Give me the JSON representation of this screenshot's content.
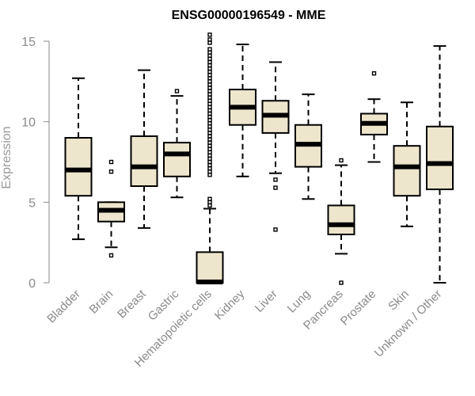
{
  "chart_data": {
    "type": "box",
    "title": "ENSG00000196549 - MME",
    "xlabel": "",
    "ylabel": "Expression",
    "ylim": [
      0,
      15
    ],
    "yticks": [
      0,
      5,
      10,
      15
    ],
    "grid": false,
    "colors": {
      "box_fill": "#ede6cc",
      "stroke": "#000000",
      "axis": "#8a8a8a",
      "label": "#9a9a9a"
    },
    "categories": [
      "Bladder",
      "Brain",
      "Breast",
      "Gastric",
      "Hematopoietic cells",
      "Kidney",
      "Liver",
      "Lung",
      "Pancreas",
      "Prostate",
      "Skin",
      "Unknown / Other"
    ],
    "boxes": [
      {
        "name": "Bladder",
        "whisker_low": 2.7,
        "q1": 5.4,
        "median": 7.0,
        "q3": 9.0,
        "whisker_high": 12.7,
        "outliers": []
      },
      {
        "name": "Brain",
        "whisker_low": 2.2,
        "q1": 3.8,
        "median": 4.5,
        "q3": 5.0,
        "whisker_high": 5.0,
        "outliers": [
          1.7,
          6.9,
          7.5
        ]
      },
      {
        "name": "Breast",
        "whisker_low": 3.4,
        "q1": 6.0,
        "median": 7.2,
        "q3": 9.1,
        "whisker_high": 13.2,
        "outliers": []
      },
      {
        "name": "Gastric",
        "whisker_low": 5.3,
        "q1": 6.6,
        "median": 8.0,
        "q3": 8.7,
        "whisker_high": 11.6,
        "outliers": [
          11.9
        ]
      },
      {
        "name": "Hematopoietic cells",
        "whisker_low": 0.0,
        "q1": 0.0,
        "median": 0.05,
        "q3": 1.9,
        "whisker_high": 4.6,
        "outliers": [
          4.8,
          5.0,
          5.2,
          6.7,
          6.9,
          7.1,
          7.3,
          7.5,
          7.7,
          7.9,
          8.1,
          8.3,
          8.5,
          8.7,
          8.9,
          9.1,
          9.3,
          9.5,
          9.7,
          9.9,
          10.1,
          10.3,
          10.5,
          10.7,
          10.9,
          11.1,
          11.3,
          11.5,
          11.7,
          11.9,
          12.1,
          12.3,
          12.5,
          12.7,
          12.9,
          13.1,
          13.3,
          13.5,
          13.7,
          13.9,
          14.1,
          14.3,
          14.5,
          14.9,
          15.1,
          15.4
        ]
      },
      {
        "name": "Kidney",
        "whisker_low": 6.6,
        "q1": 9.8,
        "median": 10.9,
        "q3": 12.0,
        "whisker_high": 14.8,
        "outliers": []
      },
      {
        "name": "Liver",
        "whisker_low": 6.8,
        "q1": 9.3,
        "median": 10.4,
        "q3": 11.3,
        "whisker_high": 13.7,
        "outliers": [
          3.3,
          5.9,
          6.4
        ]
      },
      {
        "name": "Lung",
        "whisker_low": 5.2,
        "q1": 7.2,
        "median": 8.6,
        "q3": 9.8,
        "whisker_high": 11.7,
        "outliers": []
      },
      {
        "name": "Pancreas",
        "whisker_low": 1.8,
        "q1": 3.0,
        "median": 3.6,
        "q3": 4.8,
        "whisker_high": 7.3,
        "outliers": [
          0.0,
          7.6
        ]
      },
      {
        "name": "Prostate",
        "whisker_low": 7.5,
        "q1": 9.2,
        "median": 9.9,
        "q3": 10.5,
        "whisker_high": 11.4,
        "outliers": [
          13.0
        ]
      },
      {
        "name": "Skin",
        "whisker_low": 3.5,
        "q1": 5.4,
        "median": 7.2,
        "q3": 8.5,
        "whisker_high": 11.2,
        "outliers": []
      },
      {
        "name": "Unknown / Other",
        "whisker_low": 0.0,
        "q1": 5.8,
        "median": 7.4,
        "q3": 9.7,
        "whisker_high": 14.7,
        "outliers": []
      }
    ]
  }
}
